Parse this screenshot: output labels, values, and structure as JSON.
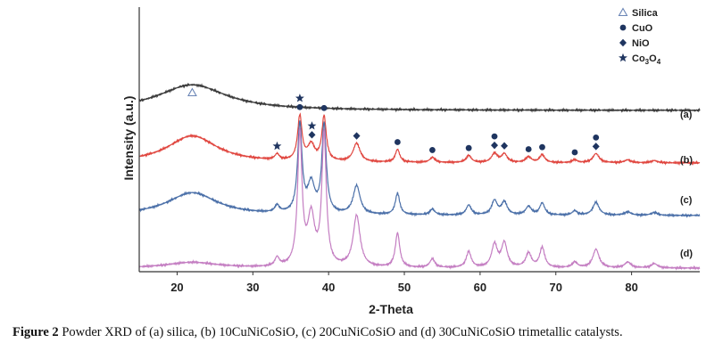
{
  "chart_data": {
    "type": "line",
    "xlabel": "2-Theta",
    "ylabel": "Intensity (a.u.)",
    "xlim": [
      15,
      89
    ],
    "x_ticks": [
      20,
      30,
      40,
      50,
      60,
      70,
      80
    ],
    "legend": {
      "placement": "top-right",
      "entries": [
        {
          "marker": "open-triangle",
          "label": "Silica"
        },
        {
          "marker": "circle",
          "label": "CuO"
        },
        {
          "marker": "diamond",
          "label": "NiO"
        },
        {
          "marker": "star",
          "label": "Co3O4",
          "label_main": "Co",
          "sub1": "3",
          "mid": "O",
          "sub2": "4"
        }
      ]
    },
    "series": [
      {
        "name": "(a)",
        "color": "#3a3a3a",
        "baseline": 0.0,
        "peaks": [
          [
            22.0,
            0.9,
            5.5
          ]
        ]
      },
      {
        "name": "(b)",
        "color": "#e0463f",
        "baseline": 0.0,
        "peaks": [
          [
            22.0,
            0.95,
            4.0
          ],
          [
            33.2,
            0.2,
            0.35
          ],
          [
            36.2,
            1.55,
            0.35
          ],
          [
            37.7,
            0.55,
            0.55
          ],
          [
            39.4,
            1.55,
            0.35
          ],
          [
            43.7,
            0.65,
            0.55
          ],
          [
            49.1,
            0.45,
            0.35
          ],
          [
            53.7,
            0.18,
            0.4
          ],
          [
            58.5,
            0.25,
            0.4
          ],
          [
            61.9,
            0.32,
            0.45
          ],
          [
            63.2,
            0.3,
            0.45
          ],
          [
            66.4,
            0.2,
            0.45
          ],
          [
            68.2,
            0.28,
            0.4
          ],
          [
            72.5,
            0.1,
            0.4
          ],
          [
            75.3,
            0.32,
            0.5
          ],
          [
            79.5,
            0.1,
            0.5
          ],
          [
            83.0,
            0.08,
            0.5
          ]
        ]
      },
      {
        "name": "(c)",
        "color": "#4a6fa8",
        "baseline": 0.0,
        "peaks": [
          [
            22.0,
            0.8,
            4.0
          ],
          [
            33.2,
            0.25,
            0.35
          ],
          [
            36.2,
            3.1,
            0.35
          ],
          [
            37.7,
            1.0,
            0.55
          ],
          [
            39.4,
            3.1,
            0.35
          ],
          [
            43.7,
            1.0,
            0.55
          ],
          [
            49.1,
            0.75,
            0.35
          ],
          [
            53.7,
            0.2,
            0.4
          ],
          [
            58.5,
            0.35,
            0.4
          ],
          [
            61.9,
            0.5,
            0.45
          ],
          [
            63.2,
            0.45,
            0.45
          ],
          [
            66.4,
            0.3,
            0.45
          ],
          [
            68.2,
            0.42,
            0.4
          ],
          [
            72.5,
            0.15,
            0.4
          ],
          [
            75.3,
            0.45,
            0.5
          ],
          [
            79.5,
            0.12,
            0.5
          ],
          [
            83.0,
            0.1,
            0.5
          ]
        ]
      },
      {
        "name": "(d)",
        "color": "#c47ec2",
        "baseline": 0.0,
        "peaks": [
          [
            22.0,
            0.2,
            4.0
          ],
          [
            33.2,
            0.3,
            0.35
          ],
          [
            36.2,
            4.6,
            0.35
          ],
          [
            37.7,
            1.7,
            0.55
          ],
          [
            39.4,
            4.6,
            0.35
          ],
          [
            43.7,
            1.8,
            0.55
          ],
          [
            49.1,
            1.2,
            0.35
          ],
          [
            53.7,
            0.3,
            0.4
          ],
          [
            58.5,
            0.55,
            0.4
          ],
          [
            61.9,
            0.8,
            0.45
          ],
          [
            63.2,
            0.85,
            0.45
          ],
          [
            66.4,
            0.5,
            0.45
          ],
          [
            68.2,
            0.7,
            0.4
          ],
          [
            72.5,
            0.2,
            0.4
          ],
          [
            75.3,
            0.65,
            0.5
          ],
          [
            79.5,
            0.2,
            0.5
          ],
          [
            83.0,
            0.15,
            0.5
          ]
        ]
      }
    ],
    "annotations": [
      {
        "series": "(a)",
        "x": 22.0,
        "markers": [
          "open-triangle"
        ]
      },
      {
        "series": "(b)",
        "x": 33.2,
        "markers": [
          "star"
        ]
      },
      {
        "series": "(b)",
        "x": 36.2,
        "markers": [
          "circle",
          "star"
        ]
      },
      {
        "series": "(b)",
        "x": 37.8,
        "markers": [
          "diamond",
          "star"
        ]
      },
      {
        "series": "(b)",
        "x": 39.4,
        "markers": [
          "circle"
        ]
      },
      {
        "series": "(b)",
        "x": 43.7,
        "markers": [
          "diamond"
        ]
      },
      {
        "series": "(b)",
        "x": 49.1,
        "markers": [
          "circle"
        ]
      },
      {
        "series": "(b)",
        "x": 53.7,
        "markers": [
          "circle"
        ]
      },
      {
        "series": "(b)",
        "x": 58.5,
        "markers": [
          "circle"
        ]
      },
      {
        "series": "(b)",
        "x": 61.9,
        "markers": [
          "diamond",
          "circle"
        ]
      },
      {
        "series": "(b)",
        "x": 63.2,
        "markers": [
          "diamond"
        ]
      },
      {
        "series": "(b)",
        "x": 66.4,
        "markers": [
          "circle"
        ]
      },
      {
        "series": "(b)",
        "x": 68.2,
        "markers": [
          "circle"
        ]
      },
      {
        "series": "(b)",
        "x": 72.5,
        "markers": [
          "circle"
        ]
      },
      {
        "series": "(b)",
        "x": 75.3,
        "markers": [
          "diamond",
          "circle"
        ]
      }
    ]
  },
  "caption": {
    "label": "Figure 2",
    "text": "Powder XRD of (a) silica, (b) 10CuNiCoSiO, (c) 20CuNiCoSiO and (d) 30CuNiCoSiO trimetallic catalysts."
  }
}
